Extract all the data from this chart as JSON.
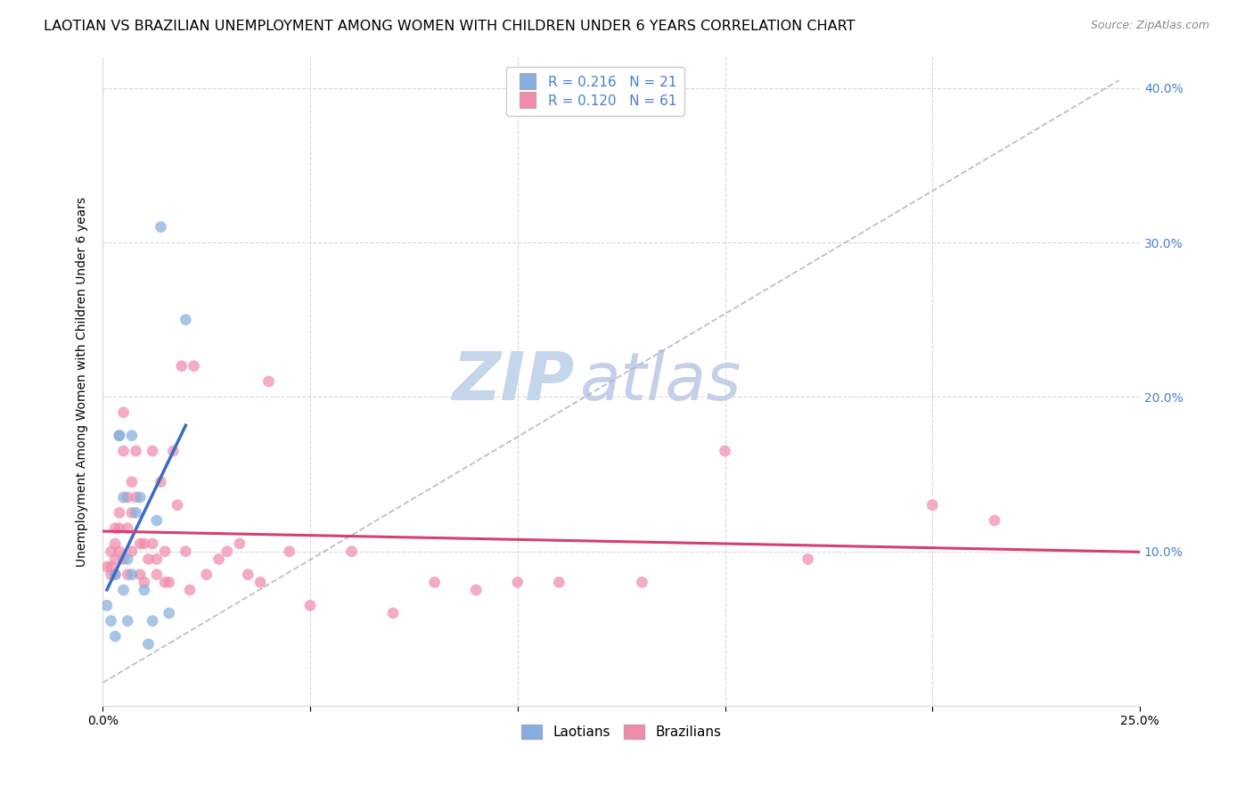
{
  "title": "LAOTIAN VS BRAZILIAN UNEMPLOYMENT AMONG WOMEN WITH CHILDREN UNDER 6 YEARS CORRELATION CHART",
  "source": "Source: ZipAtlas.com",
  "ylabel": "Unemployment Among Women with Children Under 6 years",
  "xlim": [
    0.0,
    0.25
  ],
  "ylim": [
    0.0,
    0.42
  ],
  "xticks": [
    0.0,
    0.05,
    0.1,
    0.15,
    0.2,
    0.25
  ],
  "xticklabels": [
    "0.0%",
    "",
    "",
    "",
    "",
    "25.0%"
  ],
  "yticks": [
    0.0,
    0.1,
    0.2,
    0.3,
    0.4
  ],
  "laotian_color": "#87aede",
  "brazilian_color": "#f08caa",
  "trendline_laotian_color": "#3a6bc4",
  "trendline_brazilian_color": "#d44070",
  "dashed_line_color": "#b0b8cc",
  "R_laotian": 0.216,
  "N_laotian": 21,
  "R_brazilian": 0.12,
  "N_brazilian": 61,
  "laotian_x": [
    0.001,
    0.002,
    0.003,
    0.003,
    0.004,
    0.004,
    0.005,
    0.005,
    0.006,
    0.006,
    0.007,
    0.007,
    0.008,
    0.009,
    0.01,
    0.011,
    0.012,
    0.013,
    0.014,
    0.016,
    0.02
  ],
  "laotian_y": [
    0.065,
    0.055,
    0.085,
    0.045,
    0.175,
    0.175,
    0.135,
    0.075,
    0.055,
    0.095,
    0.175,
    0.085,
    0.125,
    0.135,
    0.075,
    0.04,
    0.055,
    0.12,
    0.31,
    0.06,
    0.25
  ],
  "brazilian_x": [
    0.001,
    0.002,
    0.002,
    0.002,
    0.003,
    0.003,
    0.003,
    0.003,
    0.004,
    0.004,
    0.004,
    0.005,
    0.005,
    0.005,
    0.006,
    0.006,
    0.006,
    0.007,
    0.007,
    0.007,
    0.008,
    0.008,
    0.009,
    0.009,
    0.01,
    0.01,
    0.011,
    0.012,
    0.012,
    0.013,
    0.013,
    0.014,
    0.015,
    0.015,
    0.016,
    0.017,
    0.018,
    0.019,
    0.02,
    0.021,
    0.022,
    0.025,
    0.028,
    0.03,
    0.033,
    0.035,
    0.038,
    0.04,
    0.045,
    0.05,
    0.06,
    0.07,
    0.08,
    0.09,
    0.1,
    0.11,
    0.13,
    0.15,
    0.17,
    0.2,
    0.215
  ],
  "brazilian_y": [
    0.09,
    0.1,
    0.09,
    0.085,
    0.115,
    0.105,
    0.095,
    0.085,
    0.125,
    0.115,
    0.1,
    0.19,
    0.165,
    0.095,
    0.135,
    0.115,
    0.085,
    0.145,
    0.125,
    0.1,
    0.165,
    0.135,
    0.105,
    0.085,
    0.105,
    0.08,
    0.095,
    0.165,
    0.105,
    0.095,
    0.085,
    0.145,
    0.1,
    0.08,
    0.08,
    0.165,
    0.13,
    0.22,
    0.1,
    0.075,
    0.22,
    0.085,
    0.095,
    0.1,
    0.105,
    0.085,
    0.08,
    0.21,
    0.1,
    0.065,
    0.1,
    0.06,
    0.08,
    0.075,
    0.08,
    0.08,
    0.08,
    0.165,
    0.095,
    0.13,
    0.12
  ],
  "background_color": "#ffffff",
  "grid_color": "#d8d8e0",
  "watermark_zip_color": "#c5d5ea",
  "watermark_atlas_color": "#c5cfe8",
  "title_fontsize": 11.5,
  "axis_label_fontsize": 10,
  "tick_fontsize": 10,
  "right_tick_color": "#4a7fd4",
  "marker_size": 85,
  "marker_alpha": 0.72
}
